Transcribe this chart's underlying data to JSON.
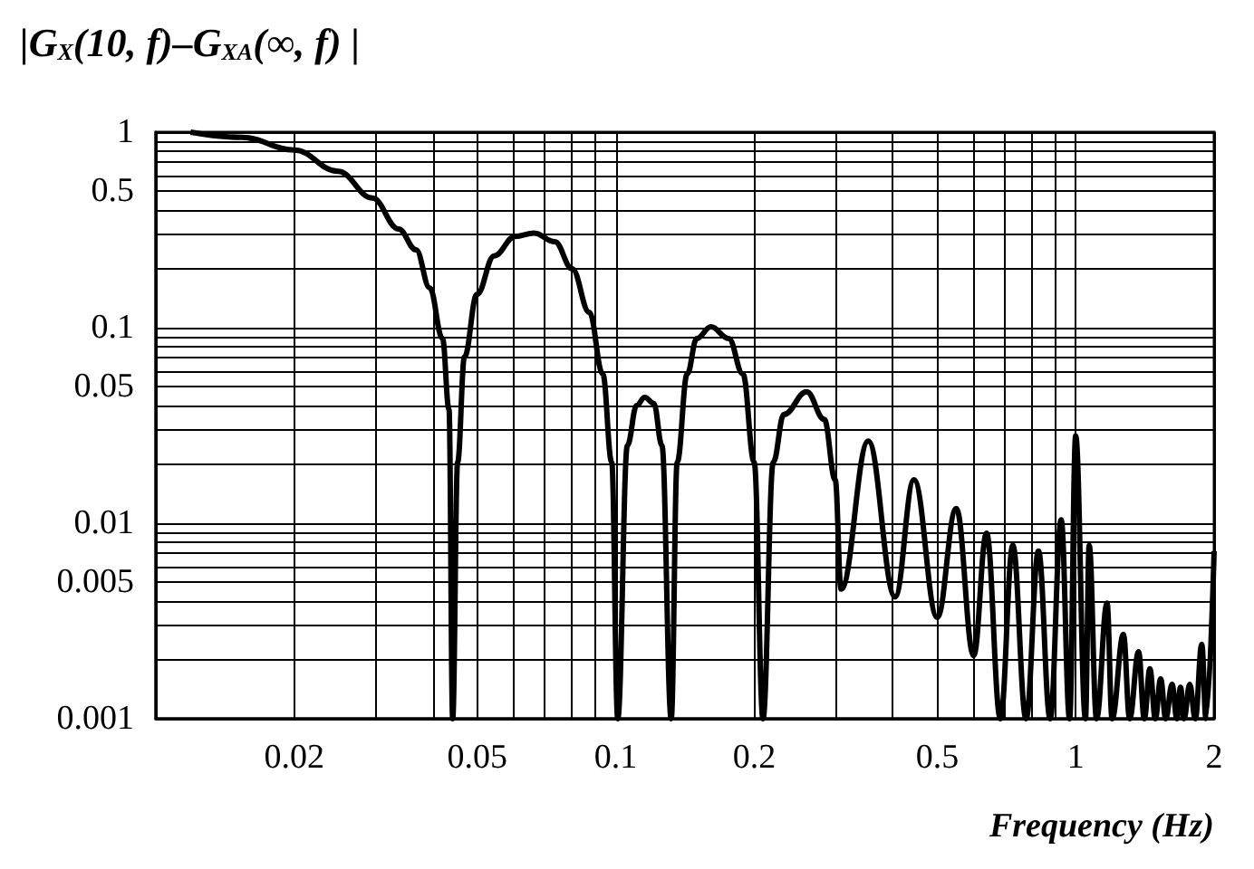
{
  "chart_data": {
    "type": "line",
    "ylabel": "|G$_{X}$(10, f)–G$_{XA}$(∞, f) |",
    "xlabel": "Frequency (Hz)",
    "log": "xy",
    "grid": true,
    "marker": "none",
    "line_style": "solid",
    "xlim": [
      0.01,
      2
    ],
    "ylim": [
      0.001,
      1
    ],
    "xticks": [
      {
        "value": 0.01,
        "label": null
      },
      0.02,
      {
        "value": 0.03,
        "label": null
      },
      {
        "value": 0.04,
        "label": null
      },
      0.05,
      {
        "value": 0.06,
        "label": null
      },
      {
        "value": 0.07,
        "label": null
      },
      {
        "value": 0.08,
        "label": null
      },
      {
        "value": 0.09,
        "label": null
      },
      0.1,
      0.2,
      {
        "value": 0.3,
        "label": null
      },
      {
        "value": 0.4,
        "label": null
      },
      0.5,
      {
        "value": 0.6,
        "label": null
      },
      {
        "value": 0.7,
        "label": null
      },
      {
        "value": 0.8,
        "label": null
      },
      {
        "value": 0.9,
        "label": null
      },
      1,
      2
    ],
    "yticks": [
      0.001,
      {
        "value": 0.002,
        "label": null
      },
      {
        "value": 0.003,
        "label": null
      },
      {
        "value": 0.004,
        "label": null
      },
      0.005,
      {
        "value": 0.006,
        "label": null
      },
      {
        "value": 0.007,
        "label": null
      },
      {
        "value": 0.008,
        "label": null
      },
      {
        "value": 0.009,
        "label": null
      },
      0.01,
      {
        "value": 0.02,
        "label": null
      },
      {
        "value": 0.03,
        "label": null
      },
      {
        "value": 0.04,
        "label": null
      },
      0.05,
      {
        "value": 0.06,
        "label": null
      },
      {
        "value": 0.07,
        "label": null
      },
      {
        "value": 0.08,
        "label": null
      },
      {
        "value": 0.09,
        "label": null
      },
      0.1,
      {
        "value": 0.2,
        "label": null
      },
      {
        "value": 0.3,
        "label": null
      },
      {
        "value": 0.4,
        "label": null
      },
      0.5,
      {
        "value": 0.6,
        "label": null
      },
      {
        "value": 0.7,
        "label": null
      },
      {
        "value": 0.8,
        "label": null
      },
      {
        "value": 0.9,
        "label": null
      },
      1
    ],
    "series": [
      {
        "color": "#000000",
        "x": [
          0.0119,
          0.0154,
          0.02,
          0.0249,
          0.0296,
          0.0337,
          0.0368,
          0.0394,
          0.042,
          0.0434,
          0.0442,
          0.0453,
          0.0469,
          0.0499,
          0.0544,
          0.0604,
          0.0664,
          0.0737,
          0.0804,
          0.0876,
          0.0937,
          0.098,
          0.101,
          0.106,
          0.111,
          0.1156,
          0.121,
          0.126,
          0.132,
          0.136,
          0.143,
          0.15,
          0.161,
          0.176,
          0.189,
          0.2,
          0.209,
          0.22,
          0.232,
          0.26,
          0.284,
          0.3,
          0.309,
          0.354,
          0.405,
          0.445,
          0.5,
          0.55,
          0.6,
          0.64,
          0.686,
          0.73,
          0.78,
          0.83,
          0.88,
          0.93,
          0.97,
          1.0,
          1.05,
          1.07,
          1.11,
          1.17,
          1.2,
          1.27,
          1.31,
          1.37,
          1.41,
          1.45,
          1.49,
          1.53,
          1.57,
          1.62,
          1.66,
          1.69,
          1.72,
          1.77,
          1.82,
          1.88,
          1.92,
          2.0
        ],
        "values": [
          1.0,
          0.94,
          0.81,
          0.63,
          0.46,
          0.32,
          0.25,
          0.16,
          0.088,
          0.038,
          0.001,
          0.0205,
          0.071,
          0.148,
          0.233,
          0.293,
          0.305,
          0.275,
          0.2,
          0.12,
          0.058,
          0.0205,
          0.001,
          0.025,
          0.04,
          0.044,
          0.041,
          0.025,
          0.001,
          0.0205,
          0.058,
          0.088,
          0.101,
          0.088,
          0.058,
          0.0205,
          0.001,
          0.0205,
          0.036,
          0.047,
          0.034,
          0.0167,
          0.0046,
          0.0263,
          0.0042,
          0.0167,
          0.0033,
          0.0119,
          0.0021,
          0.0089,
          0.001,
          0.0077,
          0.001,
          0.0072,
          0.001,
          0.0104,
          0.001,
          0.028,
          0.001,
          0.0077,
          0.001,
          0.0039,
          0.001,
          0.0027,
          0.001,
          0.0022,
          0.001,
          0.0018,
          0.001,
          0.0016,
          0.001,
          0.0015,
          0.001,
          0.00145,
          0.001,
          0.0015,
          0.001,
          0.0024,
          0.001,
          0.0072
        ]
      }
    ]
  }
}
